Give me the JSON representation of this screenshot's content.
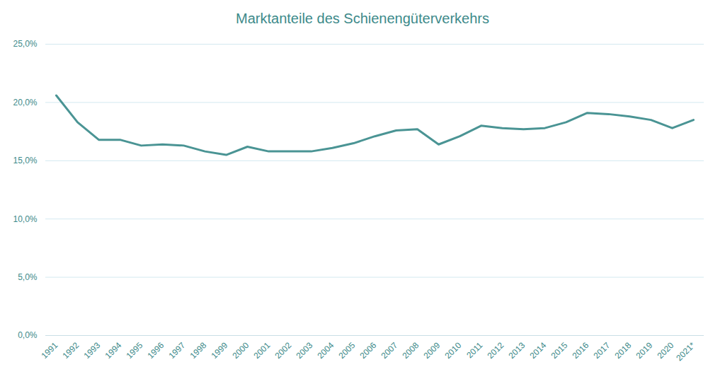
{
  "chart_data": {
    "type": "line",
    "title": "Marktanteile des Schienengüterverkehrs",
    "categories": [
      "1991",
      "1992",
      "1993",
      "1994",
      "1995",
      "1996",
      "1997",
      "1998",
      "1999",
      "2000",
      "2001",
      "2002",
      "2003",
      "2004",
      "2005",
      "2006",
      "2007",
      "2008",
      "2009",
      "2010",
      "2011",
      "2012",
      "2013",
      "2014",
      "2015",
      "2016",
      "2017",
      "2018",
      "2019",
      "2020",
      "2021*"
    ],
    "values": [
      20.6,
      18.3,
      16.8,
      16.8,
      16.3,
      16.4,
      16.3,
      15.8,
      15.5,
      16.2,
      15.8,
      15.8,
      15.8,
      16.1,
      16.5,
      17.1,
      17.6,
      17.7,
      16.4,
      17.1,
      18.0,
      17.8,
      17.7,
      17.8,
      18.3,
      19.1,
      19.0,
      18.8,
      18.5,
      17.8,
      18.5
    ],
    "color": "#4a9494",
    "ylim": [
      0,
      25
    ],
    "yticks": [
      {
        "value": 0,
        "label": "0,0%"
      },
      {
        "value": 5,
        "label": "5,0%"
      },
      {
        "value": 10,
        "label": "10,0%"
      },
      {
        "value": 15,
        "label": "15,0%"
      },
      {
        "value": 20,
        "label": "20,0%"
      },
      {
        "value": 25,
        "label": "25,0%"
      }
    ],
    "grid": true
  }
}
